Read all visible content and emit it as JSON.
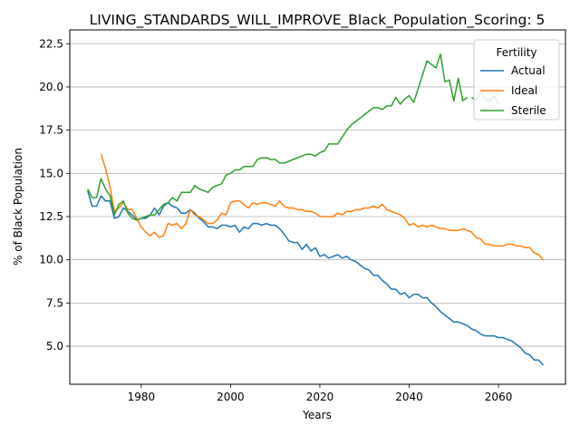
{
  "chart_data": {
    "type": "line",
    "title": "LIVING_STANDARDS_WILL_IMPROVE_Black_Population_Scoring: 5",
    "xlabel": "Years",
    "ylabel": "% of Black Population",
    "xlim": [
      1964,
      2075
    ],
    "ylim": [
      2.8,
      23.3
    ],
    "xticks": [
      1980,
      2000,
      2020,
      2040,
      2060
    ],
    "yticks": [
      5.0,
      7.5,
      10.0,
      12.5,
      15.0,
      17.5,
      20.0,
      22.5
    ],
    "xtick_labels": [
      "1980",
      "2000",
      "2020",
      "2040",
      "2060"
    ],
    "ytick_labels": [
      "5.0",
      "7.5",
      "10.0",
      "12.5",
      "15.0",
      "17.5",
      "20.0",
      "22.5"
    ],
    "grid": "horizontal",
    "legend": {
      "title": "Fertility",
      "position": "top-right"
    },
    "series": [
      {
        "name": "Actual",
        "color": "#1f77b4",
        "x_start": 1968,
        "values": [
          14.0,
          13.1,
          13.1,
          13.7,
          13.4,
          13.4,
          12.4,
          12.5,
          13.0,
          12.8,
          12.6,
          12.3,
          12.4,
          12.4,
          12.6,
          13.0,
          12.6,
          13.1,
          13.3,
          13.1,
          13.0,
          12.7,
          12.7,
          12.9,
          12.7,
          12.4,
          12.2,
          11.9,
          11.9,
          11.8,
          12.0,
          12.0,
          11.9,
          12.0,
          11.6,
          11.9,
          11.8,
          12.1,
          12.1,
          12.0,
          12.1,
          12.0,
          12.0,
          11.8,
          11.5,
          11.1,
          11.0,
          11.0,
          10.6,
          10.9,
          10.5,
          10.7,
          10.2,
          10.3,
          10.1,
          10.2,
          10.3,
          10.1,
          10.2,
          10.0,
          9.9,
          9.7,
          9.5,
          9.4,
          9.1,
          9.1,
          8.8,
          8.6,
          8.3,
          8.3,
          8.0,
          8.1,
          7.8,
          8.0,
          8.0,
          7.8,
          7.8,
          7.5,
          7.3,
          7.0,
          6.8,
          6.6,
          6.4,
          6.4,
          6.3,
          6.2,
          6.0,
          5.9,
          5.7,
          5.6,
          5.6,
          5.6,
          5.5,
          5.5,
          5.4,
          5.3,
          5.1,
          4.9,
          4.6,
          4.5,
          4.2,
          4.2,
          3.9
        ]
      },
      {
        "name": "Ideal",
        "color": "#ff7f0e",
        "x_start": 1971,
        "values": [
          16.1,
          15.3,
          14.2,
          12.8,
          13.0,
          13.3,
          12.9,
          12.9,
          12.4,
          11.9,
          11.6,
          11.4,
          11.6,
          11.3,
          11.4,
          12.1,
          12.0,
          12.1,
          11.8,
          12.1,
          12.9,
          12.6,
          12.5,
          12.3,
          12.1,
          12.1,
          12.3,
          12.7,
          12.6,
          13.3,
          13.4,
          13.4,
          13.2,
          13.0,
          13.3,
          13.2,
          13.3,
          13.3,
          13.2,
          13.1,
          13.4,
          13.1,
          13.0,
          13.0,
          12.9,
          12.9,
          12.8,
          12.8,
          12.7,
          12.5,
          12.5,
          12.5,
          12.5,
          12.7,
          12.6,
          12.8,
          12.8,
          12.9,
          12.9,
          13.0,
          13.0,
          13.1,
          13.0,
          13.2,
          12.9,
          12.8,
          12.7,
          12.6,
          12.4,
          12.0,
          12.1,
          11.9,
          12.0,
          11.9,
          12.0,
          11.9,
          11.8,
          11.8,
          11.7,
          11.7,
          11.7,
          11.8,
          11.7,
          11.6,
          11.3,
          11.2,
          10.9,
          10.9,
          10.8,
          10.8,
          10.8,
          10.9,
          10.9,
          10.8,
          10.8,
          10.7,
          10.7,
          10.4,
          10.3,
          10.0
        ]
      },
      {
        "name": "Sterile",
        "color": "#2ca02c",
        "x_start": 1968,
        "segments": [
          [
            14.1,
            13.6,
            13.6,
            14.7,
            14.1,
            13.7,
            12.6,
            13.2,
            13.4,
            12.7,
            12.4,
            12.3,
            12.4,
            12.5,
            12.6,
            12.6,
            12.9,
            13.2,
            13.3,
            13.6,
            13.4,
            13.9,
            13.9,
            13.9,
            14.3,
            14.1,
            14.0,
            13.9,
            14.2,
            14.3,
            14.4,
            14.9,
            15.0,
            15.2,
            15.2,
            15.4,
            15.4,
            15.4,
            15.8,
            15.9,
            15.9,
            15.8,
            15.8,
            15.6,
            15.6,
            15.7,
            15.8,
            15.9,
            16.0,
            16.1,
            16.1,
            16.0,
            16.2,
            16.3,
            16.7,
            16.7,
            16.7,
            17.1,
            17.5,
            17.8,
            18.0,
            18.2,
            18.4,
            18.6,
            18.8,
            18.8,
            18.7,
            18.9,
            18.9,
            19.4,
            19.0,
            19.3,
            19.5,
            19.1,
            19.9,
            20.7,
            21.5,
            21.3,
            21.1,
            21.9,
            20.3,
            20.4,
            19.2,
            20.5,
            19.2,
            19.4
          ],
          [
            19.4,
            19.2,
            19.7,
            19.3,
            19.2,
            19.5,
            19.0
          ]
        ],
        "segment_start_x": [
          1968,
          2054
        ]
      }
    ]
  }
}
